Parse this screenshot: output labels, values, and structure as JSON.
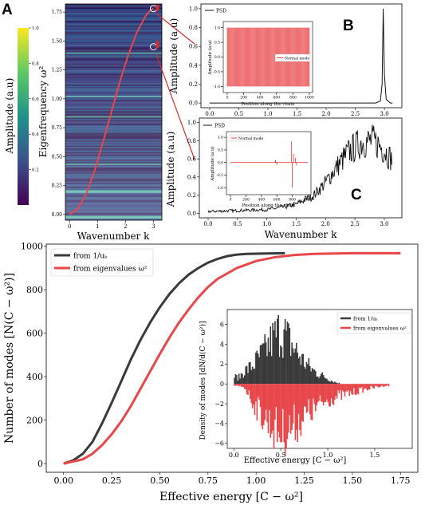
{
  "panels": {
    "A": "A",
    "B": "B",
    "C": "C"
  },
  "colors": {
    "dark": "#3a3a3a",
    "red": "#e8474a",
    "heat_low": "#2b1a55",
    "heat_mid": "#2f7f8e",
    "heat_high": "#f1e51d"
  },
  "chart_data": [
    {
      "id": "colorbar",
      "type": "heatmap",
      "ylabel": "Amplitude (a.u)",
      "ylim": [
        0,
        1.0
      ],
      "ticks": [
        "0.2",
        "0.4",
        "0.6",
        "0.8",
        "1.0"
      ]
    },
    {
      "id": "dispersion",
      "type": "heatmap",
      "xlabel": "Wavenumber k",
      "ylabel": "Eigenfrequency ω²",
      "xlim": [
        -0.15,
        3.3
      ],
      "ylim": [
        -0.05,
        1.82
      ],
      "xticks": [
        "0",
        "1",
        "2",
        "3"
      ],
      "yticks": [
        "0.00",
        "0.25",
        "0.50",
        "0.75",
        "1.00",
        "1.25",
        "1.50",
        "1.75"
      ],
      "curve": {
        "x": [
          0,
          0.3,
          0.6,
          0.9,
          1.2,
          1.5,
          1.8,
          2.1,
          2.4,
          2.7,
          2.9,
          3.0
        ],
        "y": [
          0.0,
          0.05,
          0.18,
          0.38,
          0.63,
          0.89,
          1.15,
          1.38,
          1.57,
          1.71,
          1.77,
          1.78
        ]
      },
      "markers": [
        {
          "x": 3.0,
          "y": 1.78
        },
        {
          "x": 3.0,
          "y": 1.45
        }
      ]
    },
    {
      "id": "psd_B",
      "type": "line",
      "ylabel": "Amplitude (a.u)",
      "legend": "PSD",
      "xlim": [
        -0.15,
        3.3
      ],
      "ylim": [
        -0.05,
        1.05
      ],
      "yticks": [
        "0.0",
        "0.2",
        "0.4",
        "0.6",
        "0.8",
        "1.0"
      ],
      "xticks": [
        "0.0",
        "0.5",
        "1.0",
        "1.5",
        "2.0",
        "2.5",
        "3.0"
      ],
      "peak": {
        "x": 2.98,
        "y": 1.0
      },
      "inset": {
        "xlabel": "Position along the chain",
        "ylabel": "Amplitude (a.u)",
        "legend": "Normal mode",
        "xticks": [
          "0",
          "200",
          "400",
          "600",
          "800",
          "1000"
        ],
        "yticks": [
          "-1.0",
          "-0.5",
          "0.0",
          "0.5",
          "1.0"
        ],
        "xlim": [
          0,
          1000
        ],
        "ylim": [
          -1.1,
          1.1
        ]
      }
    },
    {
      "id": "psd_C",
      "type": "line",
      "xlabel": "Wavenumber k",
      "ylabel": "Amplitude (a.u)",
      "legend": "PSD",
      "xlim": [
        -0.15,
        3.3
      ],
      "ylim": [
        -0.05,
        1.05
      ],
      "yticks": [
        "0.0",
        "0.2",
        "0.4",
        "0.6",
        "0.8",
        "1.0"
      ],
      "xticks": [
        "0.0",
        "0.5",
        "1.0",
        "1.5",
        "2.0",
        "2.5",
        "3.0"
      ],
      "envelope": {
        "x": [
          0.0,
          0.5,
          1.0,
          1.3,
          1.5,
          1.8,
          2.0,
          2.2,
          2.4,
          2.6,
          2.8,
          2.9,
          3.0,
          3.14
        ],
        "y": [
          0.02,
          0.03,
          0.04,
          0.07,
          0.1,
          0.2,
          0.34,
          0.52,
          0.68,
          0.78,
          0.8,
          0.76,
          0.7,
          0.58
        ]
      },
      "inset": {
        "xlabel": "Position along the chain",
        "ylabel": "Amplitude (a.u)",
        "legend": "Normal mode",
        "xticks": [
          "0",
          "200",
          "400",
          "600",
          "800",
          "1000"
        ],
        "yticks": [
          "-1.0",
          "-0.5",
          "0.0",
          "0.5",
          "1.0"
        ],
        "xlim": [
          0,
          1000
        ],
        "ylim": [
          -1.15,
          1.1
        ],
        "spikes": [
          {
            "x": 580,
            "y": 0.1
          },
          {
            "x": 600,
            "y": -0.08
          },
          {
            "x": 790,
            "y": 0.85
          },
          {
            "x": 800,
            "y": -1.0
          },
          {
            "x": 815,
            "y": 0.35
          },
          {
            "x": 840,
            "y": 0.18
          },
          {
            "x": 855,
            "y": -0.12
          }
        ]
      }
    },
    {
      "id": "counting",
      "type": "line",
      "xlabel": "Effective energy [C − ω²]",
      "ylabel": "Number of modes [N(C − ω²)]",
      "xlim": [
        -0.09,
        1.84
      ],
      "ylim": [
        -40,
        1010
      ],
      "xticks": [
        "0.00",
        "0.25",
        "0.50",
        "0.75",
        "1.00",
        "1.25",
        "1.50",
        "1.75"
      ],
      "yticks": [
        "0",
        "200",
        "400",
        "600",
        "800",
        "1000"
      ],
      "series": [
        {
          "name": "from 1/uₖ",
          "x": [
            0.0,
            0.05,
            0.1,
            0.15,
            0.2,
            0.25,
            0.3,
            0.35,
            0.4,
            0.45,
            0.5,
            0.55,
            0.6,
            0.65,
            0.7,
            0.75,
            0.8,
            0.85,
            0.9,
            0.95,
            1.0,
            1.05,
            1.15
          ],
          "y": [
            0,
            15,
            45,
            100,
            185,
            280,
            380,
            480,
            570,
            650,
            720,
            780,
            830,
            870,
            900,
            925,
            942,
            955,
            962,
            965,
            966,
            967,
            968
          ]
        },
        {
          "name": "from eigenvalues ω²",
          "x": [
            0.0,
            0.1,
            0.15,
            0.2,
            0.25,
            0.3,
            0.35,
            0.4,
            0.45,
            0.5,
            0.55,
            0.6,
            0.65,
            0.7,
            0.75,
            0.8,
            0.9,
            1.0,
            1.1,
            1.2,
            1.3,
            1.5,
            1.75
          ],
          "y": [
            0,
            20,
            45,
            85,
            135,
            195,
            265,
            345,
            425,
            505,
            580,
            650,
            710,
            765,
            812,
            850,
            900,
            932,
            950,
            960,
            965,
            968,
            968
          ]
        }
      ],
      "inset": {
        "type": "bar",
        "xlabel": "Effective energy [C − ω²]",
        "ylabel": "Density of modes [dN/d(C − ω²)]",
        "xlim": [
          -0.07,
          1.9
        ],
        "ylim": [
          -6.5,
          7.5
        ],
        "xticks": [
          "0.0",
          "0.5",
          "1.0",
          "1.5"
        ],
        "yticks": [
          "−6",
          "−4",
          "−2",
          "0",
          "2",
          "4",
          "6"
        ],
        "series": [
          {
            "name": "from 1/uₖ",
            "x": [
              0.05,
              0.1,
              0.15,
              0.2,
              0.25,
              0.3,
              0.35,
              0.4,
              0.45,
              0.5,
              0.55,
              0.6,
              0.65,
              0.7,
              0.75,
              0.8,
              0.85,
              0.9,
              0.95,
              1.0,
              1.05,
              1.1
            ],
            "y": [
              0.8,
              1.5,
              1.8,
              2.2,
              3.0,
              3.6,
              4.3,
              5.2,
              5.8,
              6.5,
              5.6,
              4.8,
              4.0,
              3.2,
              2.5,
              2.0,
              1.5,
              1.2,
              0.9,
              0.6,
              0.3,
              0.1
            ]
          },
          {
            "name": "from eigenvalues ω²",
            "x": [
              0.1,
              0.15,
              0.2,
              0.25,
              0.3,
              0.35,
              0.4,
              0.45,
              0.5,
              0.55,
              0.6,
              0.65,
              0.7,
              0.75,
              0.8,
              0.85,
              0.9,
              0.95,
              1.0,
              1.1,
              1.2,
              1.3,
              1.4,
              1.5,
              1.6
            ],
            "y": [
              -0.3,
              -1.2,
              -2.2,
              -3.0,
              -3.8,
              -4.4,
              -5.0,
              -5.5,
              -5.8,
              -5.6,
              -5.2,
              -4.8,
              -4.3,
              -3.8,
              -3.4,
              -3.0,
              -2.6,
              -2.2,
              -1.9,
              -1.5,
              -1.2,
              -0.9,
              -0.6,
              -0.4,
              -0.2
            ]
          }
        ]
      }
    }
  ]
}
